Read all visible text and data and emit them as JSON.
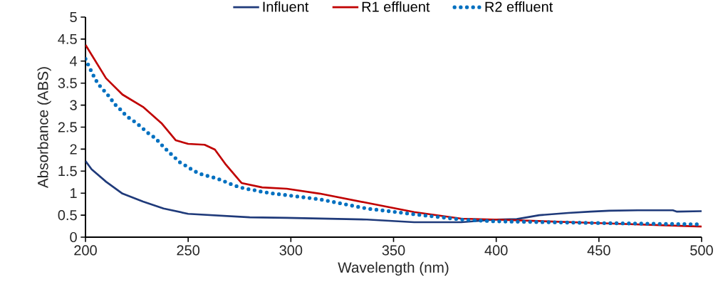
{
  "chart_data": {
    "type": "line",
    "xlabel": "Wavelength (nm)",
    "ylabel": "Absorbance (ABS)",
    "xlim": [
      200,
      500
    ],
    "ylim": [
      0,
      5
    ],
    "xticks": [
      200,
      250,
      300,
      350,
      400,
      450,
      500
    ],
    "yticks": [
      0,
      0.5,
      1,
      1.5,
      2,
      2.5,
      3,
      3.5,
      4,
      4.5,
      5
    ],
    "grid": false,
    "legend": "top",
    "marker": "none",
    "series": [
      {
        "name": "Influent",
        "color": "#1f3a7a",
        "line_style": "solid",
        "x": [
          200,
          203,
          210,
          218,
          228,
          238,
          250,
          265,
          280,
          298,
          337,
          360,
          383,
          400,
          410,
          421,
          435,
          446,
          455,
          469,
          486,
          488,
          500
        ],
        "values": [
          1.73,
          1.54,
          1.26,
          0.99,
          0.81,
          0.65,
          0.53,
          0.49,
          0.45,
          0.44,
          0.4,
          0.34,
          0.34,
          0.4,
          0.41,
          0.5,
          0.55,
          0.58,
          0.6,
          0.61,
          0.61,
          0.58,
          0.59
        ]
      },
      {
        "name": "R1 effluent",
        "color": "#c00000",
        "line_style": "solid",
        "x": [
          200,
          210,
          218,
          228,
          237,
          244,
          250,
          258,
          263,
          268,
          276,
          286,
          298,
          314,
          337,
          360,
          383,
          399,
          450,
          500
        ],
        "values": [
          4.37,
          3.61,
          3.24,
          2.96,
          2.59,
          2.2,
          2.12,
          2.1,
          1.99,
          1.67,
          1.23,
          1.13,
          1.1,
          0.99,
          0.78,
          0.57,
          0.42,
          0.4,
          0.32,
          0.24
        ]
      },
      {
        "name": "R2 effluent",
        "color": "#0070c0",
        "line_style": "dotted",
        "x": [
          200,
          202,
          204,
          206,
          209,
          212,
          214,
          217,
          220,
          224,
          227,
          230,
          234,
          237,
          240,
          243,
          246,
          250,
          253,
          257,
          262,
          266,
          270,
          274,
          278,
          282,
          286,
          290,
          314,
          337,
          360,
          383,
          399,
          450,
          500
        ],
        "values": [
          4.05,
          3.85,
          3.66,
          3.49,
          3.33,
          3.17,
          3.03,
          2.9,
          2.75,
          2.62,
          2.51,
          2.38,
          2.25,
          2.1,
          1.96,
          1.83,
          1.7,
          1.59,
          1.5,
          1.42,
          1.36,
          1.3,
          1.22,
          1.15,
          1.1,
          1.07,
          1.03,
          1.0,
          0.86,
          0.65,
          0.52,
          0.4,
          0.36,
          0.32,
          0.29
        ]
      }
    ]
  }
}
